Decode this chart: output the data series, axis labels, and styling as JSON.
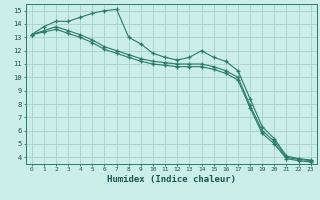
{
  "xlabel": "Humidex (Indice chaleur)",
  "background_color": "#cceee8",
  "grid_color": "#aad4ce",
  "line_color": "#2a7a6a",
  "xlim": [
    -0.5,
    23.5
  ],
  "ylim": [
    3.5,
    15.5
  ],
  "xticks": [
    0,
    1,
    2,
    3,
    4,
    5,
    6,
    7,
    8,
    9,
    10,
    11,
    12,
    13,
    14,
    15,
    16,
    17,
    18,
    19,
    20,
    21,
    22,
    23
  ],
  "yticks": [
    4,
    5,
    6,
    7,
    8,
    9,
    10,
    11,
    12,
    13,
    14,
    15
  ],
  "line1_x": [
    0,
    1,
    2,
    3,
    4,
    5,
    6,
    7,
    8,
    9,
    10,
    11,
    12,
    13,
    14,
    15,
    16,
    17,
    18,
    19,
    20,
    21,
    22,
    23
  ],
  "line1_y": [
    13.2,
    13.8,
    14.2,
    14.2,
    14.5,
    14.8,
    15.0,
    15.1,
    13.0,
    12.5,
    11.8,
    11.5,
    11.3,
    11.5,
    12.0,
    11.5,
    11.2,
    10.5,
    8.4,
    6.3,
    5.4,
    4.1,
    3.9,
    3.8
  ],
  "line2_x": [
    0,
    1,
    2,
    3,
    4,
    5,
    6,
    7,
    8,
    9,
    10,
    11,
    12,
    13,
    14,
    15,
    16,
    17,
    18,
    19,
    20,
    21,
    22,
    23
  ],
  "line2_y": [
    13.2,
    13.5,
    13.8,
    13.5,
    13.2,
    12.8,
    12.3,
    12.0,
    11.7,
    11.4,
    11.2,
    11.1,
    11.0,
    11.0,
    11.0,
    10.8,
    10.5,
    10.0,
    7.9,
    6.0,
    5.2,
    4.0,
    3.85,
    3.75
  ],
  "line3_x": [
    0,
    1,
    2,
    3,
    4,
    5,
    6,
    7,
    8,
    9,
    10,
    11,
    12,
    13,
    14,
    15,
    16,
    17,
    18,
    19,
    20,
    21,
    22,
    23
  ],
  "line3_y": [
    13.2,
    13.4,
    13.6,
    13.3,
    13.0,
    12.6,
    12.1,
    11.8,
    11.5,
    11.2,
    11.0,
    10.9,
    10.8,
    10.8,
    10.8,
    10.6,
    10.3,
    9.8,
    7.7,
    5.8,
    5.0,
    3.9,
    3.75,
    3.65
  ]
}
